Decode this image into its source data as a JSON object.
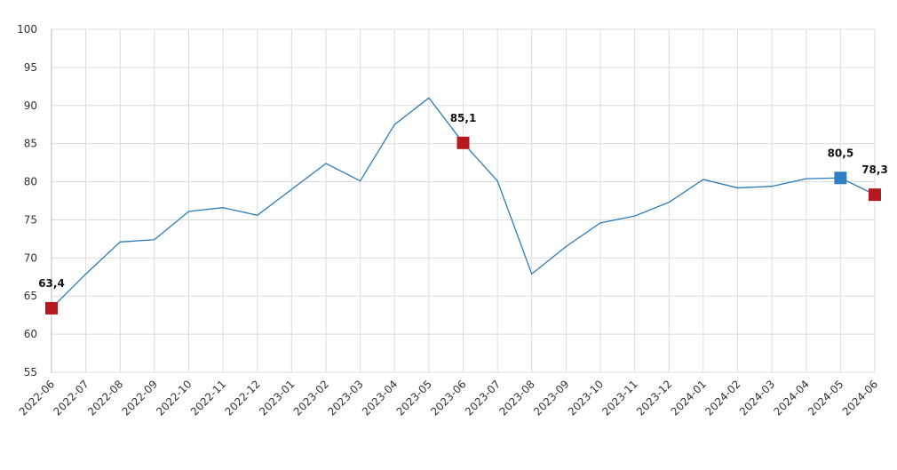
{
  "chart_data": {
    "type": "line",
    "categories": [
      "2022-06",
      "2022-07",
      "2022-08",
      "2022-09",
      "2022-10",
      "2022-11",
      "2022-12",
      "2023-01",
      "2023-02",
      "2023-03",
      "2023-04",
      "2023-05",
      "2023-06",
      "2023-07",
      "2023-08",
      "2023-09",
      "2023-10",
      "2023-11",
      "2023-12",
      "2024-01",
      "2024-02",
      "2024-03",
      "2024-04",
      "2024-05",
      "2024-06"
    ],
    "series": [
      {
        "color": "#2b7bba",
        "values": [
          63.4,
          67.9,
          72.1,
          72.4,
          76.1,
          76.6,
          75.6,
          79.0,
          82.4,
          80.1,
          87.5,
          91.0,
          85.1,
          80.1,
          67.9,
          71.5,
          74.6,
          75.5,
          77.3,
          80.3,
          79.2,
          79.4,
          80.4,
          80.5,
          78.3
        ],
        "value_labels": [
          "63,4",
          null,
          null,
          null,
          null,
          null,
          null,
          null,
          null,
          null,
          null,
          null,
          "85,1",
          null,
          null,
          null,
          null,
          null,
          null,
          null,
          null,
          null,
          null,
          "80,5",
          "78,3"
        ],
        "marker_colors": [
          "#b5191f",
          null,
          null,
          null,
          null,
          null,
          null,
          null,
          null,
          null,
          null,
          null,
          "#b5191f",
          null,
          null,
          null,
          null,
          null,
          null,
          null,
          null,
          null,
          null,
          "#2f7fc1",
          "#b5191f"
        ]
      }
    ],
    "ylim": [
      55,
      100
    ],
    "yticks": [
      55,
      60,
      65,
      70,
      75,
      80,
      85,
      90,
      95,
      100
    ],
    "grid": true
  }
}
